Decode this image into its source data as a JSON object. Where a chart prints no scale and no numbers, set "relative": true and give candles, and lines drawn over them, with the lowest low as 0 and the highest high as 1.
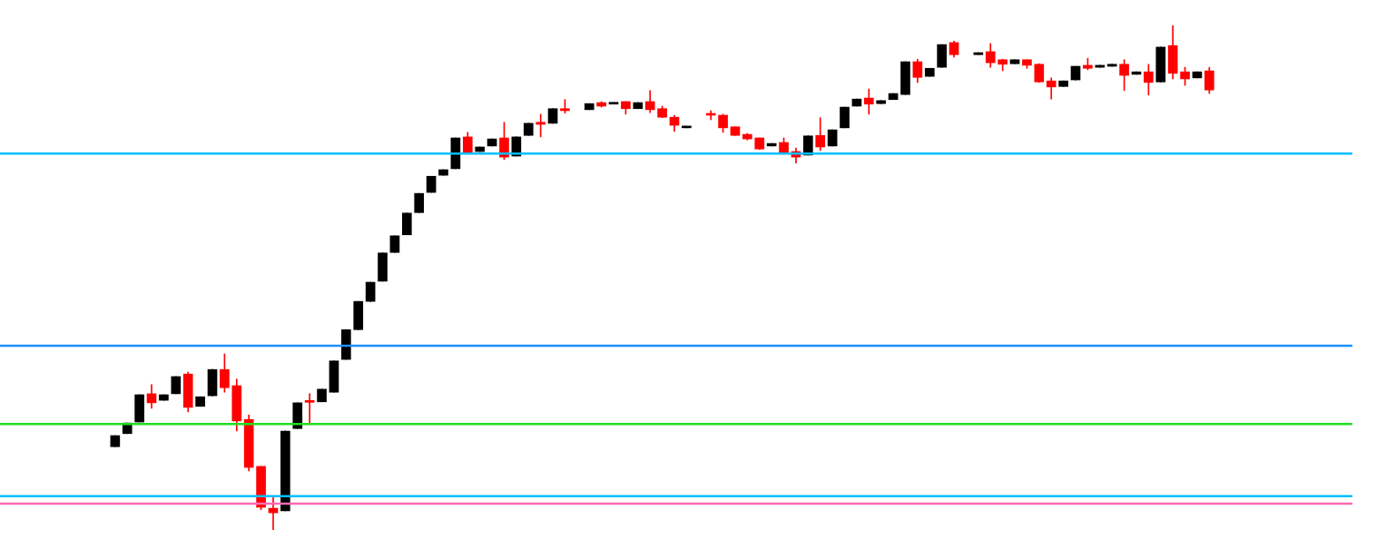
{
  "chart_data": {
    "type": "candlestick",
    "relative": true,
    "tick_labels": false,
    "legend": false,
    "categories": [
      null,
      null,
      null,
      null,
      null,
      null,
      null,
      null,
      null,
      null,
      null,
      null,
      null,
      null,
      null,
      null,
      null,
      null,
      null,
      null,
      null,
      null,
      null,
      null,
      null,
      null,
      null,
      null,
      null,
      null,
      null,
      null,
      null,
      null,
      null,
      null,
      null,
      null,
      null,
      null,
      null,
      null,
      null,
      null,
      null,
      null,
      null,
      null,
      null,
      null,
      null,
      null,
      null,
      null,
      null,
      null,
      null,
      null,
      null,
      null,
      null,
      null,
      null,
      null,
      null,
      null,
      null,
      null,
      null,
      null,
      null,
      null,
      null,
      null,
      null,
      null,
      null,
      null,
      null,
      null,
      null,
      null,
      null,
      null,
      null,
      null,
      null,
      null,
      null,
      null,
      null
    ],
    "ohlc": [
      [
        0.165,
        0.187,
        0.165,
        0.187
      ],
      [
        0.191,
        0.212,
        0.191,
        0.212
      ],
      [
        0.214,
        0.268,
        0.214,
        0.268
      ],
      [
        0.27,
        0.288,
        0.241,
        0.252
      ],
      [
        0.257,
        0.268,
        0.257,
        0.268
      ],
      [
        0.27,
        0.304,
        0.27,
        0.304
      ],
      [
        0.309,
        0.313,
        0.234,
        0.243
      ],
      [
        0.245,
        0.264,
        0.245,
        0.264
      ],
      [
        0.266,
        0.318,
        0.266,
        0.318
      ],
      [
        0.318,
        0.349,
        0.273,
        0.282
      ],
      [
        0.286,
        0.299,
        0.196,
        0.216
      ],
      [
        0.219,
        0.228,
        0.117,
        0.124
      ],
      [
        0.126,
        0.126,
        0.04,
        0.045
      ],
      [
        0.043,
        0.065,
        0,
        0.034
      ],
      [
        0.038,
        0.196,
        0.038,
        0.196
      ],
      [
        0.201,
        0.252,
        0.201,
        0.252
      ],
      [
        0.254,
        0.27,
        0.209,
        0.253
      ],
      [
        0.254,
        0.279,
        0.254,
        0.279
      ],
      [
        0.273,
        0.335,
        0.273,
        0.335
      ],
      [
        0.338,
        0.397,
        0.338,
        0.397
      ],
      [
        0.397,
        0.453,
        0.397,
        0.453
      ],
      [
        0.453,
        0.491,
        0.453,
        0.491
      ],
      [
        0.493,
        0.549,
        0.493,
        0.549
      ],
      [
        0.55,
        0.583,
        0.55,
        0.583
      ],
      [
        0.585,
        0.628,
        0.585,
        0.628
      ],
      [
        0.629,
        0.667,
        0.629,
        0.667
      ],
      [
        0.669,
        0.701,
        0.669,
        0.701
      ],
      [
        0.703,
        0.714,
        0.703,
        0.714
      ],
      [
        0.716,
        0.777,
        0.716,
        0.777
      ],
      [
        0.779,
        0.788,
        0.746,
        0.746
      ],
      [
        0.75,
        0.759,
        0.75,
        0.759
      ],
      [
        0.761,
        0.775,
        0.761,
        0.775
      ],
      [
        0.777,
        0.808,
        0.734,
        0.739
      ],
      [
        0.741,
        0.779,
        0.741,
        0.779
      ],
      [
        0.782,
        0.806,
        0.782,
        0.806
      ],
      [
        0.808,
        0.824,
        0.779,
        0.804
      ],
      [
        0.806,
        0.835,
        0.806,
        0.835
      ],
      [
        0.835,
        0.853,
        0.826,
        0.831
      ],
      null,
      [
        0.833,
        0.845,
        0.833,
        0.845
      ],
      [
        0.847,
        0.849,
        0.838,
        0.84
      ],
      [
        0.844,
        0.847,
        0.844,
        0.847
      ],
      [
        0.849,
        0.849,
        0.824,
        0.835
      ],
      [
        0.835,
        0.847,
        0.835,
        0.847
      ],
      [
        0.849,
        0.871,
        0.827,
        0.833
      ],
      [
        0.835,
        0.84,
        0.817,
        0.818
      ],
      [
        0.818,
        0.822,
        0.79,
        0.802
      ],
      [
        0.797,
        0.8,
        0.797,
        0.8
      ],
      null,
      [
        0.824,
        0.831,
        0.813,
        0.822
      ],
      [
        0.822,
        0.824,
        0.788,
        0.797
      ],
      [
        0.799,
        0.799,
        0.782,
        0.782
      ],
      [
        0.784,
        0.786,
        0.773,
        0.775
      ],
      [
        0.777,
        0.777,
        0.754,
        0.755
      ],
      [
        0.761,
        0.766,
        0.761,
        0.766
      ],
      [
        0.768,
        0.777,
        0.745,
        0.748
      ],
      [
        0.75,
        0.757,
        0.727,
        0.739
      ],
      [
        0.743,
        0.781,
        0.743,
        0.781
      ],
      [
        0.782,
        0.817,
        0.752,
        0.759
      ],
      [
        0.761,
        0.793,
        0.761,
        0.793
      ],
      [
        0.797,
        0.838,
        0.797,
        0.838
      ],
      [
        0.84,
        0.854,
        0.84,
        0.854
      ],
      [
        0.856,
        0.874,
        0.824,
        0.844
      ],
      [
        0.845,
        0.851,
        0.845,
        0.851
      ],
      [
        0.853,
        0.865,
        0.853,
        0.865
      ],
      [
        0.863,
        0.928,
        0.863,
        0.928
      ],
      [
        0.928,
        0.933,
        0.887,
        0.897
      ],
      [
        0.899,
        0.915,
        0.899,
        0.915
      ],
      [
        0.917,
        0.962,
        0.917,
        0.962
      ],
      [
        0.966,
        0.969,
        0.937,
        0.942
      ],
      null,
      [
        0.942,
        0.946,
        0.942,
        0.946
      ],
      [
        0.948,
        0.964,
        0.917,
        0.926
      ],
      [
        0.932,
        0.933,
        0.91,
        0.923
      ],
      [
        0.924,
        0.932,
        0.924,
        0.932
      ],
      [
        0.932,
        0.932,
        0.915,
        0.921
      ],
      [
        0.923,
        0.924,
        0.887,
        0.888
      ],
      [
        0.89,
        0.896,
        0.854,
        0.878
      ],
      [
        0.879,
        0.89,
        0.879,
        0.89
      ],
      [
        0.892,
        0.919,
        0.892,
        0.919
      ],
      [
        0.921,
        0.935,
        0.912,
        0.915
      ],
      [
        0.917,
        0.921,
        0.917,
        0.921
      ],
      [
        0.919,
        0.923,
        0.919,
        0.923
      ],
      [
        0.923,
        0.932,
        0.871,
        0.901
      ],
      [
        0.903,
        0.908,
        0.903,
        0.908
      ],
      [
        0.908,
        0.923,
        0.862,
        0.887
      ],
      [
        0.888,
        0.957,
        0.888,
        0.957
      ],
      [
        0.96,
        1,
        0.894,
        0.905
      ],
      [
        0.908,
        0.917,
        0.881,
        0.894
      ],
      [
        0.896,
        0.908,
        0.896,
        0.908
      ],
      [
        0.91,
        0.917,
        0.865,
        0.872
      ]
    ],
    "colors": [
      "#000000",
      "#000000",
      "#000000",
      "#ff0000",
      "#000000",
      "#000000",
      "#ff0000",
      "#000000",
      "#000000",
      "#ff0000",
      "#ff0000",
      "#ff0000",
      "#ff0000",
      "#ff0000",
      "#000000",
      "#000000",
      "#ff0000",
      "#000000",
      "#000000",
      "#000000",
      "#000000",
      "#000000",
      "#000000",
      "#000000",
      "#000000",
      "#000000",
      "#000000",
      "#000000",
      "#000000",
      "#ff0000",
      "#000000",
      "#000000",
      "#ff0000",
      "#000000",
      "#000000",
      "#ff0000",
      "#000000",
      "#ff0000",
      null,
      "#000000",
      "#ff0000",
      "#000000",
      "#ff0000",
      "#000000",
      "#ff0000",
      "#ff0000",
      "#ff0000",
      "#000000",
      null,
      "#ff0000",
      "#ff0000",
      "#ff0000",
      "#ff0000",
      "#ff0000",
      "#000000",
      "#ff0000",
      "#ff0000",
      "#000000",
      "#ff0000",
      "#000000",
      "#000000",
      "#000000",
      "#ff0000",
      "#000000",
      "#000000",
      "#000000",
      "#ff0000",
      "#000000",
      "#000000",
      "#ff0000",
      null,
      "#000000",
      "#ff0000",
      "#ff0000",
      "#000000",
      "#ff0000",
      "#ff0000",
      "#ff0000",
      "#000000",
      "#000000",
      "#ff0000",
      "#000000",
      "#000000",
      "#ff0000",
      "#000000",
      "#ff0000",
      "#000000",
      "#ff0000",
      "#ff0000",
      "#000000",
      "#ff0000"
    ],
    "ref_lines": [
      {
        "axis": "y",
        "value": 0.746,
        "color": "#00bfff"
      },
      {
        "axis": "y",
        "value": 0.365,
        "color": "#1e90ff"
      },
      {
        "axis": "y",
        "value": 0.21,
        "color": "#22dd22"
      },
      {
        "axis": "y",
        "value": 0.067,
        "color": "#00bfff"
      },
      {
        "axis": "y",
        "value": 0.052,
        "color": "#ff69b4"
      }
    ]
  }
}
